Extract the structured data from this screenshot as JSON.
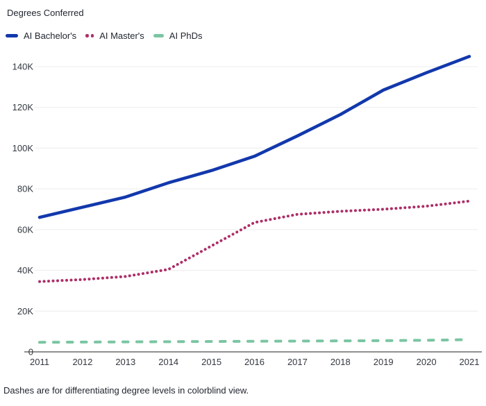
{
  "title": "Degrees Conferred",
  "footer": "Dashes are for differentiating degree levels in colorblind view.",
  "legend": [
    {
      "label": "AI Bachelor's",
      "color": "#1238ac",
      "style": "solid"
    },
    {
      "label": "AI Master's",
      "color": "#ad2e67",
      "style": "dotted"
    },
    {
      "label": "AI PhDs",
      "color": "#7ac5a2",
      "style": "dashed"
    }
  ],
  "colors": {
    "grid": "#ececec",
    "axis": "#8f8f8f",
    "tick_text": "#33383f"
  },
  "chart_data": {
    "type": "line",
    "title": "Degrees Conferred",
    "xlabel": "",
    "ylabel": "",
    "x": [
      2011,
      2012,
      2013,
      2014,
      2015,
      2016,
      2017,
      2018,
      2019,
      2020,
      2021
    ],
    "series": [
      {
        "name": "AI Bachelor's",
        "color": "#1238ac",
        "dash": "solid",
        "values": [
          66000,
          71000,
          76000,
          83000,
          89000,
          96000,
          106000,
          116500,
          128500,
          137000,
          145000
        ]
      },
      {
        "name": "AI Master's",
        "color": "#ad2e67",
        "dash": "dotted",
        "values": [
          34500,
          35500,
          37000,
          40500,
          52000,
          63500,
          67500,
          69000,
          70000,
          71500,
          74000
        ]
      },
      {
        "name": "AI PhDs",
        "color": "#7ac5a2",
        "dash": "dashed",
        "values": [
          4700,
          4800,
          4900,
          5000,
          5100,
          5200,
          5300,
          5400,
          5500,
          5700,
          6000
        ]
      }
    ],
    "yticks": {
      "values": [
        0,
        20000,
        40000,
        60000,
        80000,
        100000,
        120000,
        140000
      ],
      "labels": [
        "0",
        "20K",
        "40K",
        "60K",
        "80K",
        "100K",
        "120K",
        "140K"
      ]
    },
    "ylim": [
      0,
      148000
    ],
    "grid": true,
    "legend_position": "top-left",
    "note": "Dashes are for differentiating degree levels in colorblind view."
  }
}
